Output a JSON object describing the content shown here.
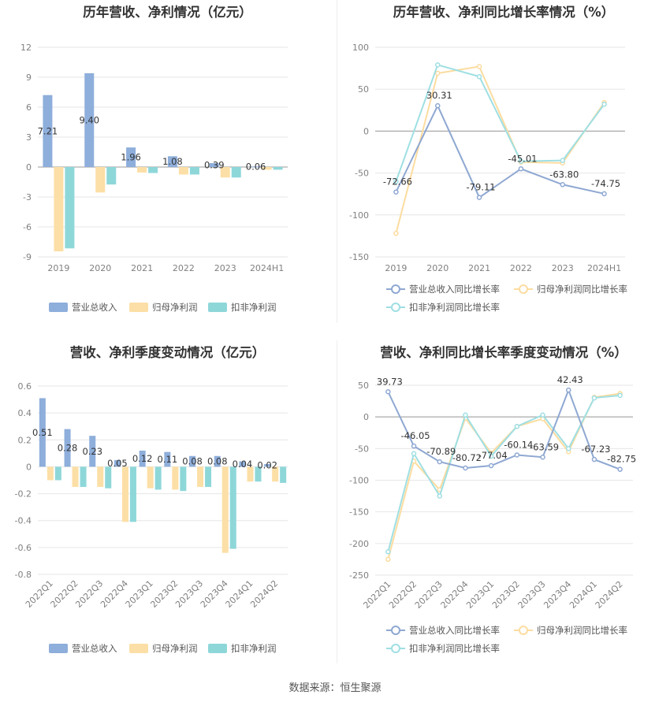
{
  "source_label": "数据来源：恒生聚源",
  "colors": {
    "revenue": "#8eaedb",
    "net_profit": "#fcdfa6",
    "deducted_profit": "#8ed7d9",
    "revenue_line": "#8fa8d2",
    "net_profit_line": "#fcdca0",
    "deducted_line": "#9fdfe3",
    "grid": "#e6e6e6",
    "axis_text": "#808080"
  },
  "chart_data": [
    {
      "id": "annual_amount",
      "type": "bar",
      "title": "历年营收、净利情况（亿元）",
      "categories": [
        "2019",
        "2020",
        "2021",
        "2022",
        "2023",
        "2024H1"
      ],
      "series": [
        {
          "name": "营业总收入",
          "values": [
            7.21,
            9.4,
            1.96,
            1.08,
            0.39,
            0.06
          ]
        },
        {
          "name": "归母净利润",
          "values": [
            -8.45,
            -2.55,
            -0.55,
            -0.75,
            -1.05,
            -0.27
          ]
        },
        {
          "name": "扣非净利润",
          "values": [
            -8.15,
            -1.75,
            -0.6,
            -0.75,
            -1.05,
            -0.27
          ]
        }
      ],
      "data_labels": [
        "7.21",
        "9.40",
        "1.96",
        "1.08",
        "0.39",
        "0.06"
      ],
      "yticks": [
        "12",
        "9",
        "6",
        "3",
        "0",
        "-3",
        "-6",
        "-9"
      ],
      "ylim": [
        -9,
        12
      ],
      "legend": "bottom"
    },
    {
      "id": "annual_growth",
      "type": "line",
      "title": "历年营收、净利同比增长率情况（%）",
      "categories": [
        "2019",
        "2020",
        "2021",
        "2022",
        "2023",
        "2024H1"
      ],
      "series": [
        {
          "name": "营业总收入同比增长率",
          "values": [
            -72.66,
            30.31,
            -79.11,
            -45.01,
            -63.8,
            -74.75
          ]
        },
        {
          "name": "归母净利润同比增长率",
          "values": [
            -122,
            69,
            77,
            -37,
            -38,
            34
          ]
        },
        {
          "name": "扣非净利润同比增长率",
          "values": [
            -60,
            79,
            65,
            -36,
            -35,
            32
          ]
        }
      ],
      "data_labels": [
        "-72.66",
        "30.31",
        "-79.11",
        "-45.01",
        "-63.80",
        "-74.75"
      ],
      "yticks": [
        "100",
        "50",
        "0",
        "-50",
        "-100",
        "-150"
      ],
      "ylim": [
        -150,
        100
      ],
      "legend": "bottom"
    },
    {
      "id": "quarterly_amount",
      "type": "bar",
      "title": "营收、净利季度变动情况（亿元）",
      "categories": [
        "2022Q1",
        "2022Q2",
        "2022Q3",
        "2022Q4",
        "2023Q1",
        "2023Q2",
        "2023Q3",
        "2023Q4",
        "2024Q1",
        "2024Q2"
      ],
      "series": [
        {
          "name": "营业总收入",
          "values": [
            0.51,
            0.28,
            0.23,
            0.05,
            0.12,
            0.11,
            0.08,
            0.08,
            0.04,
            0.02
          ]
        },
        {
          "name": "归母净利润",
          "values": [
            -0.1,
            -0.15,
            -0.15,
            -0.41,
            -0.16,
            -0.17,
            -0.15,
            -0.64,
            -0.11,
            -0.11
          ]
        },
        {
          "name": "扣非净利润",
          "values": [
            -0.1,
            -0.15,
            -0.16,
            -0.41,
            -0.17,
            -0.18,
            -0.15,
            -0.61,
            -0.11,
            -0.12
          ]
        }
      ],
      "data_labels": [
        "0.51",
        "0.28",
        "0.23",
        "0.05",
        "0.12",
        "0.11",
        "0.08",
        "0.08",
        "0.04",
        "0.02"
      ],
      "yticks": [
        "0.6",
        "0.4",
        "0.2",
        "0",
        "-0.2",
        "-0.4",
        "-0.6",
        "-0.8"
      ],
      "ylim": [
        -0.8,
        0.6
      ],
      "legend": "bottom"
    },
    {
      "id": "quarterly_growth",
      "type": "line",
      "title": "营收、净利同比增长率季度变动情况（%）",
      "categories": [
        "2022Q1",
        "2022Q2",
        "2022Q3",
        "2022Q4",
        "2023Q1",
        "2023Q2",
        "2023Q3",
        "2023Q4",
        "2024Q1",
        "2024Q2"
      ],
      "series": [
        {
          "name": "营业总收入同比增长率",
          "values": [
            39.73,
            -46.05,
            -70.89,
            -80.72,
            -77.04,
            -60.14,
            -63.59,
            42.43,
            -67.23,
            -82.75
          ]
        },
        {
          "name": "归母净利润同比增长率",
          "values": [
            -225,
            -70,
            -115,
            -2,
            -57,
            -15,
            -3,
            -55,
            31,
            37
          ]
        },
        {
          "name": "扣非净利润同比增长率",
          "values": [
            -213,
            -58,
            -125,
            3,
            -62,
            -15,
            3,
            -50,
            30,
            34
          ]
        }
      ],
      "data_labels": [
        "39.73",
        "-46.05",
        "-70.89",
        "-80.72",
        "-77.04",
        "-60.14",
        "-63.59",
        "42.43",
        "-67.23",
        "-82.75"
      ],
      "yticks": [
        "50",
        "0",
        "-50",
        "-100",
        "-150",
        "-200",
        "-250"
      ],
      "ylim": [
        -250,
        50
      ],
      "legend": "bottom"
    }
  ]
}
